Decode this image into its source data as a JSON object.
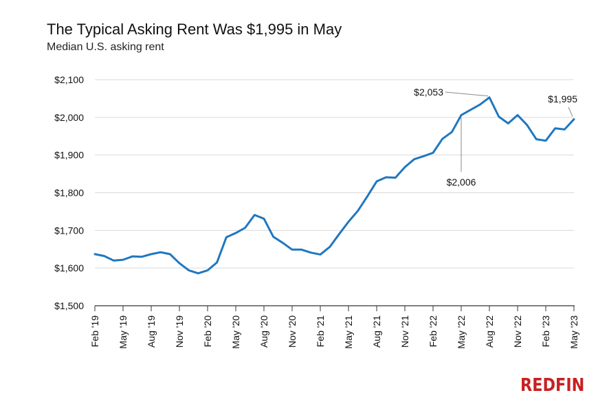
{
  "header": {
    "title": "The Typical Asking Rent Was $1,995 in May",
    "subtitle": "Median U.S. asking rent"
  },
  "brand": {
    "logo_text": "REDFIN",
    "color": "#c82021"
  },
  "colors": {
    "line": "#1f77c0",
    "grid": "#d9d9d9",
    "axis": "#333333"
  },
  "chart_data": {
    "type": "line",
    "title": "The Typical Asking Rent Was $1,995 in May",
    "subtitle": "Median U.S. asking rent",
    "ylim": [
      1500,
      2100
    ],
    "yticks": [
      1500,
      1600,
      1700,
      1800,
      1900,
      2000,
      2100
    ],
    "ytick_labels": [
      "$1,500",
      "$1,600",
      "$1,700",
      "$1,800",
      "$1,900",
      "$2,000",
      "$2,100"
    ],
    "xtick_labels": [
      "Feb '19",
      "May '19",
      "Aug '19",
      "Nov '19",
      "Feb '20",
      "May '20",
      "Aug '20",
      "Nov '20",
      "Feb '21",
      "May '21",
      "Aug '21",
      "Nov '21",
      "Feb '22",
      "May '22",
      "Aug '22",
      "Nov '22",
      "Feb '23",
      "May '23"
    ],
    "grid": "horizontal",
    "legend": "none",
    "series": [
      {
        "values": [
          1637,
          1632,
          1620,
          1622,
          1631,
          1630,
          1637,
          1642,
          1637,
          1613,
          1594,
          1586,
          1594,
          1615,
          1682,
          1693,
          1707,
          1741,
          1731,
          1683,
          1667,
          1649,
          1649,
          1641,
          1636,
          1656,
          1690,
          1723,
          1752,
          1790,
          1830,
          1841,
          1840,
          1868,
          1889,
          1897,
          1906,
          1943,
          1961,
          2006,
          2020,
          2034,
          2053,
          2002,
          1984,
          2006,
          1980,
          1942,
          1938,
          1971,
          1968,
          1995
        ]
      }
    ],
    "annotations": [
      {
        "label": "$2,053",
        "index": 42,
        "value": 2053
      },
      {
        "label": "$2,006",
        "index": 39,
        "value": 2006
      },
      {
        "label": "$1,995",
        "index": 51,
        "value": 1995
      }
    ]
  }
}
